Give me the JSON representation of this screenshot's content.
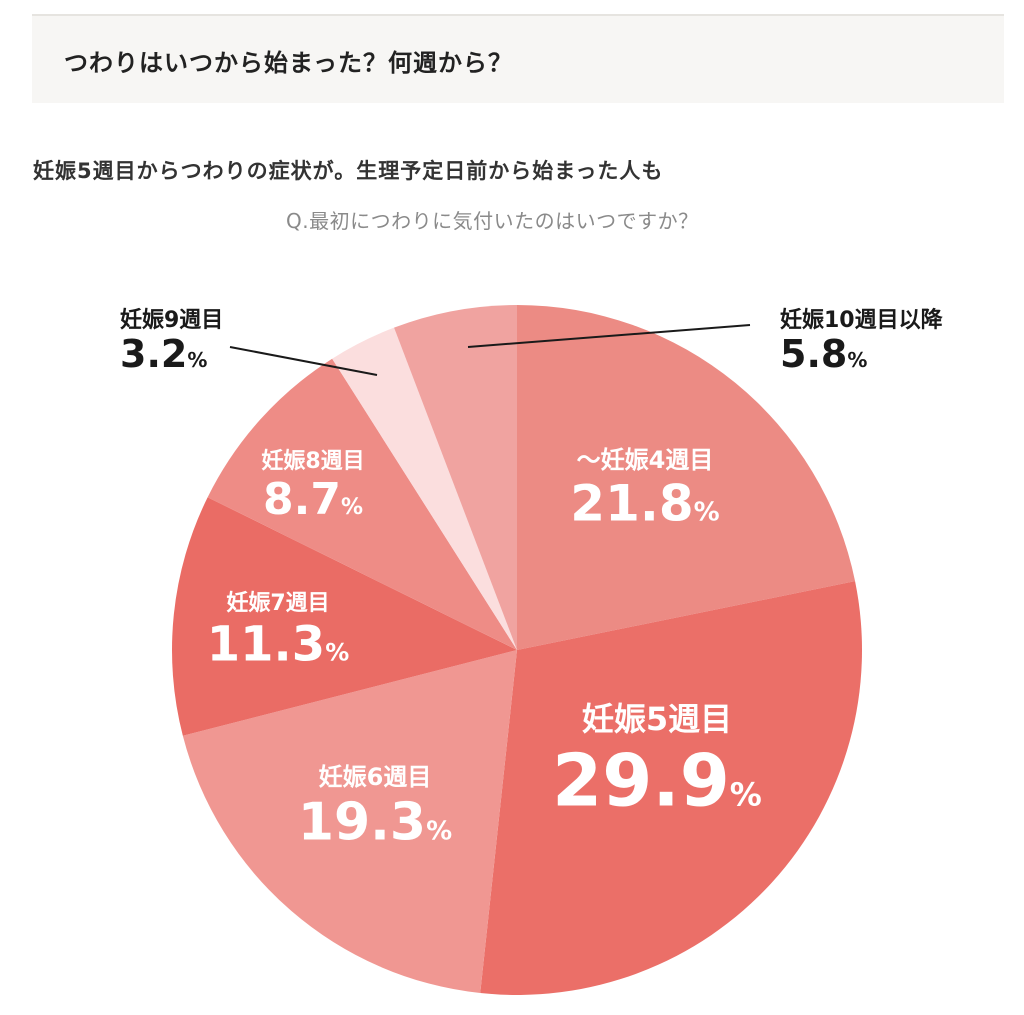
{
  "heading": {
    "title": "つわりはいつから始まった？何週から？"
  },
  "subheading": "妊娠5週目からつわりの症状が。生理予定日前から始まった人も",
  "question": "Q.最初につわりに気付いたのはいつですか？",
  "chart_data": {
    "type": "pie",
    "title": "Q.最初につわりに気付いたのはいつですか？",
    "unit": "%",
    "slices": [
      {
        "label": "～妊娠4週目",
        "value": 21.8,
        "display": "21.8",
        "color": "#ec8b84"
      },
      {
        "label": "妊娠5週目",
        "value": 29.9,
        "display": "29.9",
        "color": "#eb6f68"
      },
      {
        "label": "妊娠6週目",
        "value": 19.3,
        "display": "19.3",
        "color": "#f09792"
      },
      {
        "label": "妊娠7週目",
        "value": 11.3,
        "display": "11.3",
        "color": "#ea6c65"
      },
      {
        "label": "妊娠8週目",
        "value": 8.7,
        "display": "8.7",
        "color": "#ee8c86"
      },
      {
        "label": "妊娠9週目",
        "value": 3.2,
        "display": "3.2",
        "color": "#fbdede"
      },
      {
        "label": "妊娠10週目以降",
        "value": 5.8,
        "display": "5.8",
        "color": "#f0a3a0"
      }
    ]
  }
}
